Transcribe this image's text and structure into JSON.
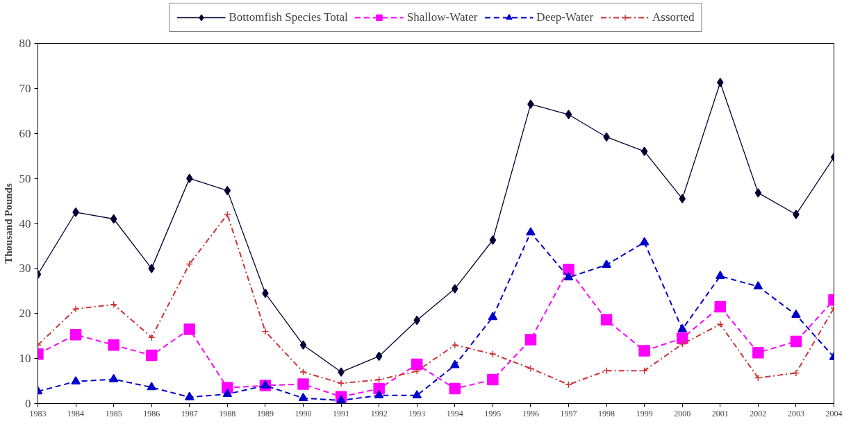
{
  "chart_data": {
    "type": "line",
    "ylabel": "Thousand Pounds",
    "x": [
      1983,
      1984,
      1985,
      1986,
      1987,
      1988,
      1989,
      1990,
      1991,
      1992,
      1993,
      1994,
      1995,
      1996,
      1997,
      1998,
      1999,
      2000,
      2001,
      2002,
      2003,
      2004
    ],
    "xlim": [
      1983,
      2004
    ],
    "xticks": [
      1983,
      1984,
      1985,
      1986,
      1987,
      1988,
      1989,
      1990,
      1991,
      1992,
      1993,
      1994,
      1995,
      1996,
      1997,
      1998,
      1999,
      2000,
      2001,
      2002,
      2003,
      2004
    ],
    "ylim": [
      0,
      80
    ],
    "yticks": [
      0,
      10,
      20,
      30,
      40,
      50,
      60,
      70,
      80
    ],
    "grid": false,
    "legend": "top",
    "series": [
      {
        "name": "Bottomfish Species Total",
        "color": "#000033",
        "marker": "diamond",
        "line_style": "solid",
        "values": [
          28.7,
          42.5,
          41,
          30,
          50,
          47.3,
          24.5,
          13,
          7,
          10.5,
          18.5,
          25.5,
          36.3,
          66.5,
          64.2,
          59.2,
          56,
          45.5,
          71.3,
          46.8,
          42,
          54.7
        ]
      },
      {
        "name": "Shallow-Water",
        "color": "#ff00ff",
        "marker": "square",
        "line_style": "dashed",
        "values": [
          11,
          15.3,
          13,
          10.7,
          16.5,
          3.5,
          4,
          4.3,
          1.5,
          3.3,
          8.7,
          3.3,
          5.3,
          14.2,
          29.8,
          18.6,
          11.7,
          14.5,
          21.5,
          11.3,
          13.8,
          23
        ]
      },
      {
        "name": "Deep-Water",
        "color": "#0000cc",
        "marker": "triangle",
        "line_style": "dashed",
        "values": [
          2.7,
          4.9,
          5.4,
          3.6,
          1.4,
          2.1,
          4,
          1.2,
          0.7,
          1.8,
          1.8,
          8.5,
          19.2,
          38,
          28,
          30.8,
          35.8,
          16.5,
          28.3,
          26,
          19.7,
          10.3
        ]
      },
      {
        "name": "Assorted",
        "color": "#cc3333",
        "marker": "cross",
        "line_style": "dashdot",
        "values": [
          13,
          21,
          22,
          14.7,
          31,
          42,
          16,
          7,
          4.5,
          5.3,
          7.2,
          13,
          11,
          7.8,
          4.2,
          7.3,
          7.3,
          13.2,
          17.6,
          5.7,
          6.8,
          21.2
        ]
      }
    ]
  }
}
